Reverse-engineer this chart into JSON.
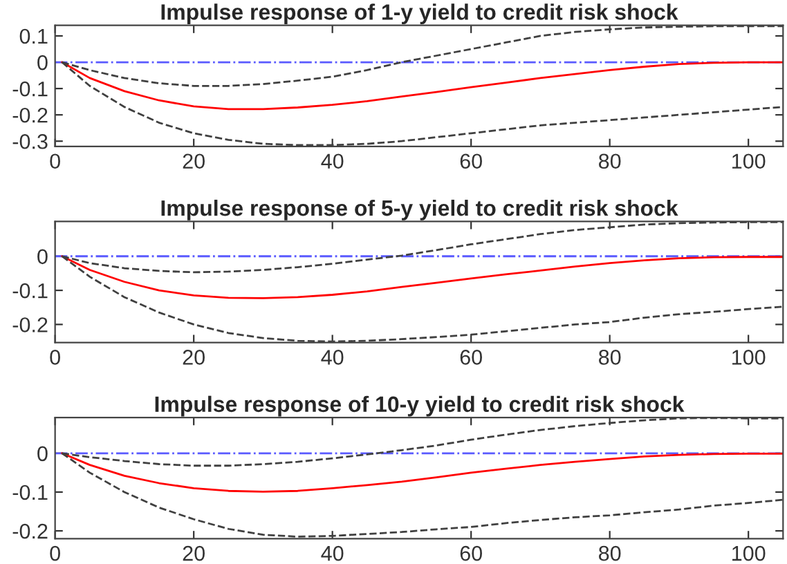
{
  "chart_data": [
    {
      "type": "line",
      "title": "Impulse response of 1-y yield to credit risk shock",
      "x": [
        1,
        5,
        10,
        15,
        20,
        25,
        30,
        35,
        40,
        45,
        50,
        55,
        60,
        65,
        70,
        75,
        80,
        85,
        90,
        95,
        100,
        105
      ],
      "series": [
        {
          "color": "#ff0000",
          "line_style": "solid",
          "values": [
            0,
            -0.06,
            -0.11,
            -0.145,
            -0.168,
            -0.178,
            -0.178,
            -0.172,
            -0.162,
            -0.148,
            -0.13,
            -0.113,
            -0.095,
            -0.078,
            -0.06,
            -0.045,
            -0.03,
            -0.017,
            -0.007,
            -0.002,
            0,
            0
          ]
        },
        {
          "color": "#404040",
          "line_style": "dashed",
          "values": [
            0,
            -0.03,
            -0.06,
            -0.08,
            -0.09,
            -0.09,
            -0.083,
            -0.07,
            -0.055,
            -0.03,
            0,
            0.025,
            0.05,
            0.075,
            0.1,
            0.115,
            0.125,
            0.132,
            0.135,
            0.137,
            0.137,
            0.137
          ]
        },
        {
          "color": "#404040",
          "line_style": "dashed",
          "values": [
            0,
            -0.09,
            -0.17,
            -0.23,
            -0.27,
            -0.295,
            -0.31,
            -0.315,
            -0.315,
            -0.31,
            -0.3,
            -0.285,
            -0.27,
            -0.255,
            -0.24,
            -0.23,
            -0.22,
            -0.21,
            -0.2,
            -0.19,
            -0.18,
            -0.17
          ]
        }
      ],
      "ref_lines": [
        {
          "axis": "y",
          "value": 0,
          "color": "#5a5aff",
          "line_style": "dashdot"
        }
      ],
      "xlim": [
        0,
        105
      ],
      "xticks": [
        0,
        20,
        40,
        60,
        80,
        100
      ],
      "ylim": [
        -0.32,
        0.14
      ],
      "yticks": [
        -0.3,
        -0.2,
        -0.1,
        0,
        0.1
      ],
      "grid": false,
      "legend": false
    },
    {
      "type": "line",
      "title": "Impulse response of 5-y yield to credit risk shock",
      "x": [
        1,
        5,
        10,
        15,
        20,
        25,
        30,
        35,
        40,
        45,
        50,
        55,
        60,
        65,
        70,
        75,
        80,
        85,
        90,
        95,
        100,
        105
      ],
      "series": [
        {
          "color": "#ff0000",
          "line_style": "solid",
          "values": [
            0,
            -0.04,
            -0.075,
            -0.1,
            -0.115,
            -0.122,
            -0.123,
            -0.12,
            -0.113,
            -0.103,
            -0.09,
            -0.078,
            -0.065,
            -0.053,
            -0.042,
            -0.03,
            -0.02,
            -0.012,
            -0.006,
            -0.003,
            -0.002,
            -0.002
          ]
        },
        {
          "color": "#404040",
          "line_style": "dashed",
          "values": [
            0,
            -0.02,
            -0.035,
            -0.043,
            -0.047,
            -0.045,
            -0.04,
            -0.032,
            -0.022,
            -0.01,
            0.002,
            0.018,
            0.035,
            0.05,
            0.065,
            0.077,
            0.085,
            0.093,
            0.097,
            0.099,
            0.1,
            0.1
          ]
        },
        {
          "color": "#404040",
          "line_style": "dashed",
          "values": [
            0,
            -0.06,
            -0.12,
            -0.165,
            -0.2,
            -0.225,
            -0.24,
            -0.248,
            -0.25,
            -0.248,
            -0.243,
            -0.237,
            -0.23,
            -0.22,
            -0.21,
            -0.2,
            -0.193,
            -0.18,
            -0.17,
            -0.163,
            -0.155,
            -0.148
          ]
        }
      ],
      "ref_lines": [
        {
          "axis": "y",
          "value": 0,
          "color": "#5a5aff",
          "line_style": "dashdot"
        }
      ],
      "xlim": [
        0,
        105
      ],
      "xticks": [
        0,
        20,
        40,
        60,
        80,
        100
      ],
      "ylim": [
        -0.253,
        0.102
      ],
      "yticks": [
        -0.2,
        -0.1,
        0
      ],
      "grid": false,
      "legend": false
    },
    {
      "type": "line",
      "title": "Impulse response of 10-y yield to credit risk shock",
      "x": [
        1,
        5,
        10,
        15,
        20,
        25,
        30,
        35,
        40,
        45,
        50,
        55,
        60,
        65,
        70,
        75,
        80,
        85,
        90,
        95,
        100,
        105
      ],
      "series": [
        {
          "color": "#ff0000",
          "line_style": "solid",
          "values": [
            0,
            -0.03,
            -0.058,
            -0.077,
            -0.09,
            -0.097,
            -0.099,
            -0.097,
            -0.09,
            -0.082,
            -0.073,
            -0.062,
            -0.05,
            -0.04,
            -0.03,
            -0.022,
            -0.015,
            -0.008,
            -0.004,
            -0.002,
            -0.001,
            -0.001
          ]
        },
        {
          "color": "#404040",
          "line_style": "dashed",
          "values": [
            0,
            -0.01,
            -0.02,
            -0.028,
            -0.032,
            -0.032,
            -0.028,
            -0.022,
            -0.013,
            -0.003,
            0.008,
            0.02,
            0.035,
            0.048,
            0.06,
            0.07,
            0.078,
            0.085,
            0.09,
            0.091,
            0.09,
            0.09
          ]
        },
        {
          "color": "#404040",
          "line_style": "dashed",
          "values": [
            0,
            -0.05,
            -0.1,
            -0.14,
            -0.17,
            -0.195,
            -0.21,
            -0.215,
            -0.213,
            -0.208,
            -0.203,
            -0.196,
            -0.19,
            -0.18,
            -0.172,
            -0.165,
            -0.16,
            -0.152,
            -0.145,
            -0.135,
            -0.128,
            -0.12
          ]
        }
      ],
      "ref_lines": [
        {
          "axis": "y",
          "value": 0,
          "color": "#5a5aff",
          "line_style": "dashdot"
        }
      ],
      "xlim": [
        0,
        105
      ],
      "xticks": [
        0,
        20,
        40,
        60,
        80,
        100
      ],
      "ylim": [
        -0.22,
        0.092
      ],
      "yticks": [
        -0.2,
        -0.1,
        0
      ],
      "grid": false,
      "legend": false
    }
  ]
}
